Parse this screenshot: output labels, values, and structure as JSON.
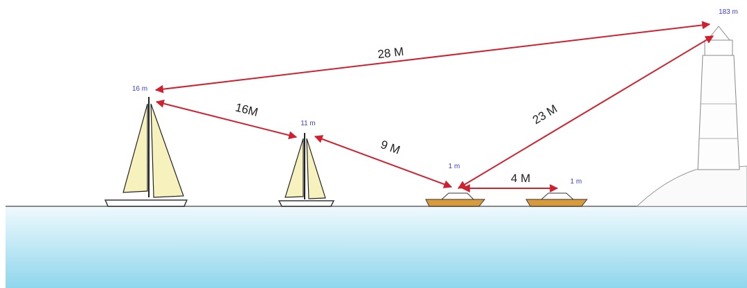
{
  "heights": [
    "16 m",
    "11 m",
    "1 m",
    "1 m",
    "183 m"
  ],
  "distances": [
    "28 M",
    "16M",
    "9 M",
    "4 M",
    "23 M"
  ]
}
